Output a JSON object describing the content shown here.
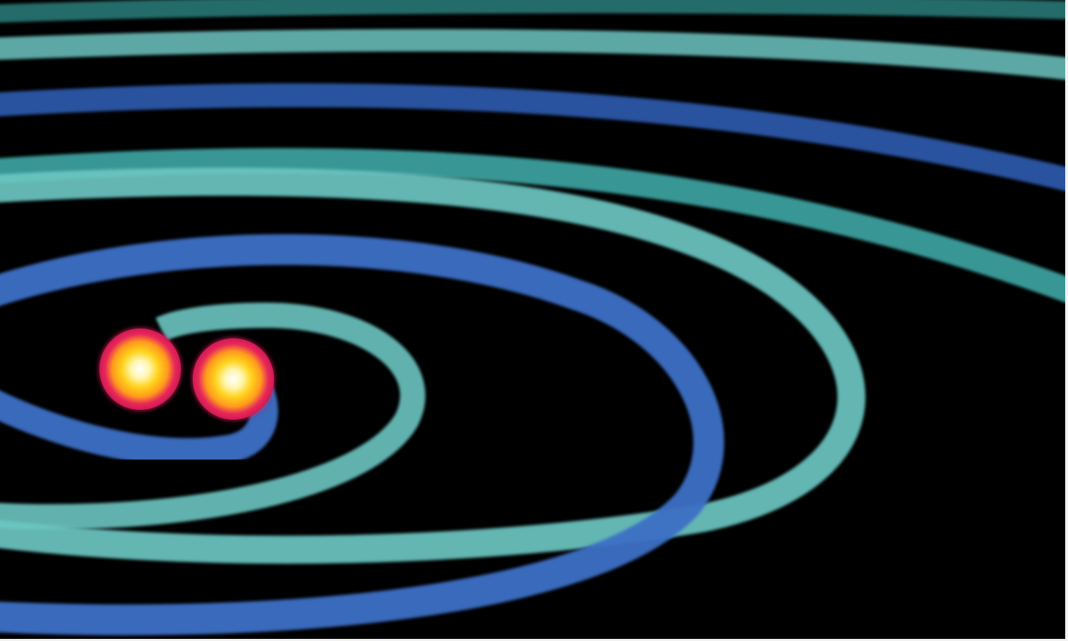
{
  "scene": {
    "subject": "binary-star-merger-spiral",
    "colors": {
      "background": "#000000",
      "blue_arm": "#3d6fc6",
      "teal_arm": "#6cc6c2",
      "star_core": "#ffffff",
      "star_mid": "#ffd21c",
      "star_outer": "#e8285a"
    },
    "objects": [
      {
        "kind": "star",
        "name": "star-left"
      },
      {
        "kind": "star",
        "name": "star-right"
      },
      {
        "kind": "wave-arm",
        "name": "blue-spiral-arm"
      },
      {
        "kind": "wave-arm",
        "name": "teal-spiral-arm"
      }
    ]
  }
}
